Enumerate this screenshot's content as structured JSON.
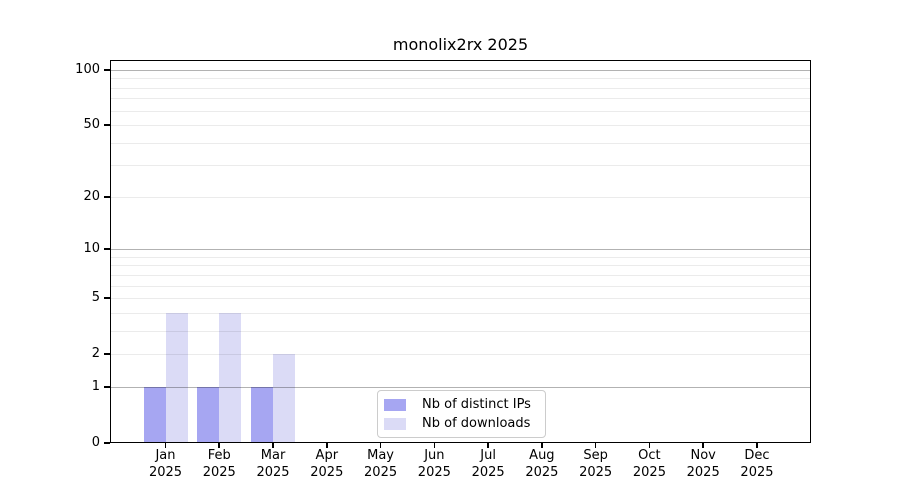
{
  "chart_data": {
    "type": "bar",
    "title": "monolix2rx 2025",
    "categories": [
      "Jan",
      "Feb",
      "Mar",
      "Apr",
      "May",
      "Jun",
      "Jul",
      "Aug",
      "Sep",
      "Oct",
      "Nov",
      "Dec"
    ],
    "category_year": "2025",
    "series": [
      {
        "name": "Nb of distinct IPs",
        "color": "#a6a6f2",
        "values": [
          1,
          1,
          1,
          0,
          0,
          0,
          0,
          0,
          0,
          0,
          0,
          0
        ]
      },
      {
        "name": "Nb of downloads",
        "color": "#dbdbf6",
        "values": [
          4,
          4,
          2,
          0,
          0,
          0,
          0,
          0,
          0,
          0,
          0,
          0
        ]
      }
    ],
    "xlabel": "",
    "ylabel": "",
    "y_scale": "log1p",
    "ylim": [
      0,
      113
    ],
    "y_ticks": [
      0,
      1,
      2,
      5,
      10,
      20,
      50,
      100
    ],
    "y_major_gridlines": [
      1,
      10,
      100
    ],
    "y_minor_gridlines": [
      2,
      3,
      4,
      5,
      6,
      7,
      8,
      9,
      20,
      30,
      40,
      50,
      60,
      70,
      80,
      90
    ],
    "grid": "on",
    "legend_position": "inside-bottom-center"
  },
  "colors": {
    "background": "#ffffff",
    "major_grid": "rgba(0,0,0,0.30)",
    "minor_grid": "rgba(0,0,0,0.08)",
    "spine": "#000000",
    "text": "#000000",
    "legend_border": "#cccccc"
  }
}
